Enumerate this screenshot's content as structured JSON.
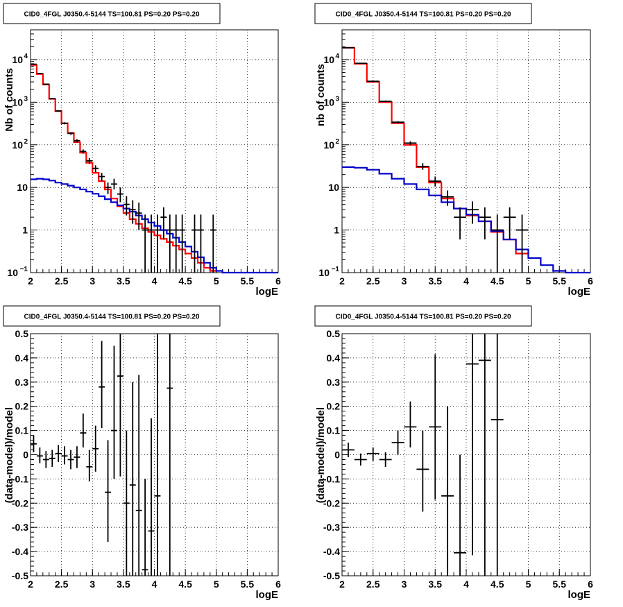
{
  "colors": {
    "data": "#000000",
    "total_model": "#ff0000",
    "bkg_model": "#0000cc",
    "grid": "#000000"
  },
  "panels": [
    {
      "title": "CID0_4FGL J0350.4-5144 TS=100.81 PS=0.20 PS=0.20",
      "chart_data": {
        "type": "histogram",
        "yscale": "log",
        "grid": true,
        "xlabel": "logE",
        "ylabel": "Nb of counts",
        "xlim": [
          2,
          6
        ],
        "ylim": [
          0.1,
          50000
        ],
        "xticks": [
          "2",
          "2.5",
          "3",
          "3.5",
          "4",
          "4.5",
          "5",
          "5.5",
          "6"
        ],
        "yticks": [
          {
            "v": 0.1,
            "b": "10",
            "e": "−1"
          },
          {
            "v": 1,
            "b": "1",
            "e": ""
          },
          {
            "v": 10,
            "b": "10",
            "e": ""
          },
          {
            "v": 100,
            "b": "10",
            "e": "2"
          },
          {
            "v": 1000,
            "b": "10",
            "e": "3"
          },
          {
            "v": 10000,
            "b": "10",
            "e": "4"
          }
        ],
        "bin_edges_start": 2,
        "bin_width": 0.1,
        "series": [
          {
            "key": "total_model",
            "values": [
              7500,
              4600,
              2600,
              1200,
              620,
              320,
              190,
              115,
              65,
              38,
              22,
              14,
              9,
              5.5,
              3.6,
              2.5,
              1.8,
              1.4,
              1.1,
              0.9,
              0.75,
              0.62,
              0.52,
              0.43,
              0.35,
              0.28,
              0.22,
              0.17,
              0.13,
              0.11
            ]
          },
          {
            "key": "bkg_model",
            "values": [
              15.5,
              16,
              15.5,
              14.5,
              13,
              12,
              11,
              10,
              9,
              8,
              7.1,
              6.2,
              5.3,
              4.5,
              3.8,
              3.2,
              2.7,
              2.2,
              1.8,
              1.5,
              1.25,
              1,
              0.82,
              0.66,
              0.52,
              0.41,
              0.31,
              0.23,
              0.17,
              0.13,
              0.11,
              0.1,
              0.1,
              0.1,
              0.1,
              0.1,
              0.1,
              0.1,
              0.1,
              0.1
            ]
          },
          {
            "key": "data",
            "points": [
              {
                "x": 2.05,
                "y": 7800,
                "lo": 7700,
                "hi": 7900
              },
              {
                "x": 2.15,
                "y": 4700,
                "lo": 4630,
                "hi": 4770
              },
              {
                "x": 2.25,
                "y": 2650,
                "lo": 2600,
                "hi": 2700
              },
              {
                "x": 2.35,
                "y": 1210,
                "lo": 1175,
                "hi": 1245
              },
              {
                "x": 2.45,
                "y": 625,
                "lo": 600,
                "hi": 650
              },
              {
                "x": 2.55,
                "y": 320,
                "lo": 302,
                "hi": 338
              },
              {
                "x": 2.65,
                "y": 185,
                "lo": 172,
                "hi": 199
              },
              {
                "x": 2.75,
                "y": 125,
                "lo": 114,
                "hi": 136
              },
              {
                "x": 2.85,
                "y": 70,
                "lo": 62,
                "hi": 78
              },
              {
                "x": 2.95,
                "y": 42,
                "lo": 36,
                "hi": 49
              },
              {
                "x": 3.05,
                "y": 28,
                "lo": 23,
                "hi": 33
              },
              {
                "x": 3.15,
                "y": 18,
                "lo": 14,
                "hi": 22
              },
              {
                "x": 3.25,
                "y": 10,
                "lo": 7,
                "hi": 13
              },
              {
                "x": 3.35,
                "y": 12,
                "lo": 9,
                "hi": 16
              },
              {
                "x": 3.45,
                "y": 7,
                "lo": 4.5,
                "hi": 10
              },
              {
                "x": 3.55,
                "y": 4,
                "lo": 2.2,
                "hi": 6.2
              },
              {
                "x": 3.65,
                "y": 3,
                "lo": 1.4,
                "hi": 5
              },
              {
                "x": 3.75,
                "y": 2.5,
                "lo": 1,
                "hi": 4.4
              },
              {
                "x": 3.85,
                "y": 1,
                "lo": 0.1,
                "hi": 2.3
              },
              {
                "x": 3.95,
                "y": 1,
                "lo": 0.1,
                "hi": 2.3
              },
              {
                "x": 4.05,
                "y": 1,
                "lo": 0.1,
                "hi": 2.3
              },
              {
                "x": 4.15,
                "y": 2,
                "lo": 0.6,
                "hi": 3.4
              },
              {
                "x": 4.25,
                "y": 1,
                "lo": 0.1,
                "hi": 2.3
              },
              {
                "x": 4.35,
                "y": 1,
                "lo": 0.1,
                "hi": 2.3
              },
              {
                "x": 4.45,
                "y": 1,
                "lo": 0.1,
                "hi": 2.3
              },
              {
                "x": 4.65,
                "y": 1,
                "lo": 0.1,
                "hi": 2.3
              },
              {
                "x": 4.75,
                "y": 1,
                "lo": 0.1,
                "hi": 2.3
              },
              {
                "x": 4.95,
                "y": 1,
                "lo": 0.1,
                "hi": 2.3
              }
            ]
          }
        ]
      }
    },
    {
      "title": "CID0_4FGL J0350.4-5144 TS=100.81 PS=0.20 PS=0.20",
      "chart_data": {
        "type": "histogram",
        "yscale": "log",
        "grid": true,
        "xlabel": "logE",
        "ylabel": "nb of counts",
        "xlim": [
          2,
          6
        ],
        "ylim": [
          0.1,
          50000
        ],
        "xticks": [
          "2",
          "2.5",
          "3",
          "3.5",
          "4",
          "4.5",
          "5",
          "5.5",
          "6"
        ],
        "yticks": [
          {
            "v": 0.1,
            "b": "10",
            "e": "−1"
          },
          {
            "v": 1,
            "b": "1",
            "e": ""
          },
          {
            "v": 10,
            "b": "10",
            "e": ""
          },
          {
            "v": 100,
            "b": "10",
            "e": "2"
          },
          {
            "v": 1000,
            "b": "10",
            "e": "3"
          },
          {
            "v": 10000,
            "b": "10",
            "e": "4"
          }
        ],
        "bin_edges_start": 2,
        "bin_width": 0.2,
        "series": [
          {
            "key": "total_model",
            "values": [
              19000,
              8000,
              3000,
              1000,
              320,
              100,
              30,
              13,
              5.5,
              3.2,
              2.2,
              1.6,
              0.9,
              0.6,
              0.28
            ]
          },
          {
            "key": "bkg_model",
            "values": [
              30,
              29,
              26,
              21,
              16,
              12,
              9,
              6.5,
              4.5,
              3.2,
              2.3,
              1.6,
              0.95,
              0.6,
              0.35,
              0.22,
              0.15,
              0.11,
              0.1,
              0.1
            ]
          },
          {
            "key": "data",
            "points": [
              {
                "x": 2.1,
                "y": 19000,
                "lo": 18700,
                "hi": 19300
              },
              {
                "x": 2.3,
                "y": 8200,
                "lo": 8000,
                "hi": 8400
              },
              {
                "x": 2.5,
                "y": 3100,
                "lo": 3000,
                "hi": 3200
              },
              {
                "x": 2.7,
                "y": 1050,
                "lo": 1000,
                "hi": 1100
              },
              {
                "x": 2.9,
                "y": 340,
                "lo": 320,
                "hi": 360
              },
              {
                "x": 3.1,
                "y": 110,
                "lo": 100,
                "hi": 121
              },
              {
                "x": 3.3,
                "y": 31,
                "lo": 26,
                "hi": 37
              },
              {
                "x": 3.5,
                "y": 14,
                "lo": 10.5,
                "hi": 18
              },
              {
                "x": 3.7,
                "y": 6,
                "lo": 3.7,
                "hi": 8.5
              },
              {
                "x": 3.9,
                "y": 2,
                "lo": 0.6,
                "hi": 3.4
              },
              {
                "x": 4.1,
                "y": 3,
                "lo": 1.4,
                "hi": 4.7
              },
              {
                "x": 4.3,
                "y": 2,
                "lo": 0.6,
                "hi": 3.4
              },
              {
                "x": 4.5,
                "y": 1,
                "lo": 0.1,
                "hi": 2.3
              },
              {
                "x": 4.7,
                "y": 2,
                "lo": 0.6,
                "hi": 3.4
              },
              {
                "x": 4.9,
                "y": 1,
                "lo": 0.1,
                "hi": 2.3
              }
            ]
          }
        ]
      }
    },
    {
      "title": "CID0_4FGL J0350.4-5144 TS=100.81 PS=0.20 PS=0.20",
      "chart_data": {
        "type": "errorbar",
        "yscale": "linear",
        "grid": true,
        "xlabel": "logE",
        "ylabel": "(data-model)/model",
        "xlim": [
          2,
          6
        ],
        "ylim": [
          -0.5,
          0.5
        ],
        "xticks": [
          "2",
          "2.5",
          "3",
          "3.5",
          "4",
          "4.5",
          "5",
          "5.5",
          "6"
        ],
        "yticks": [
          "0.5",
          "0.4",
          "0.3",
          "0.2",
          "0.1",
          "0",
          "-0.1",
          "-0.2",
          "-0.3",
          "-0.4",
          "-0.5"
        ],
        "half_width": 0.05,
        "points": [
          {
            "x": 2.05,
            "y": 0.045,
            "lo": 0.01,
            "hi": 0.08
          },
          {
            "x": 2.15,
            "y": -0.005,
            "lo": -0.035,
            "hi": 0.03
          },
          {
            "x": 2.25,
            "y": -0.02,
            "lo": -0.055,
            "hi": 0.015
          },
          {
            "x": 2.35,
            "y": -0.015,
            "lo": -0.05,
            "hi": 0.02
          },
          {
            "x": 2.45,
            "y": 0.005,
            "lo": -0.03,
            "hi": 0.04
          },
          {
            "x": 2.55,
            "y": -0.005,
            "lo": -0.04,
            "hi": 0.035
          },
          {
            "x": 2.65,
            "y": -0.02,
            "lo": -0.06,
            "hi": 0.02
          },
          {
            "x": 2.75,
            "y": -0.01,
            "lo": -0.055,
            "hi": 0.035
          },
          {
            "x": 2.85,
            "y": 0.09,
            "lo": 0.03,
            "hi": 0.17
          },
          {
            "x": 2.95,
            "y": -0.05,
            "lo": -0.11,
            "hi": 0.02
          },
          {
            "x": 3.05,
            "y": 0.025,
            "lo": -0.07,
            "hi": 0.12
          },
          {
            "x": 3.15,
            "y": 0.28,
            "lo": 0.11,
            "hi": 0.47
          },
          {
            "x": 3.25,
            "y": -0.155,
            "lo": -0.36,
            "hi": 0.06
          },
          {
            "x": 3.35,
            "y": 0.1,
            "lo": -0.1,
            "hi": 0.45
          },
          {
            "x": 3.45,
            "y": 0.325,
            "lo": -0.09,
            "hi": 0.5
          },
          {
            "x": 3.55,
            "y": -0.2,
            "lo": -0.5,
            "hi": 0.1
          },
          {
            "x": 3.65,
            "y": -0.125,
            "lo": -0.5,
            "hi": 0.3
          },
          {
            "x": 3.75,
            "y": -0.23,
            "lo": -0.5,
            "hi": 0.33
          },
          {
            "x": 3.85,
            "y": -0.475,
            "lo": -0.5,
            "hi": -0.1
          },
          {
            "x": 3.95,
            "y": -0.315,
            "lo": -0.5,
            "hi": 0.15
          },
          {
            "x": 4.05,
            "y": -0.17,
            "lo": -0.5,
            "hi": 0.5
          },
          {
            "x": 4.25,
            "y": 0.275,
            "lo": -0.5,
            "hi": 0.5
          }
        ]
      }
    },
    {
      "title": "CID0_4FGL J0350.4-5144 TS=100.81 PS=0.20 PS=0.20",
      "chart_data": {
        "type": "errorbar",
        "yscale": "linear",
        "grid": true,
        "xlabel": "logE",
        "ylabel": "(data-model)/model",
        "xlim": [
          2,
          6
        ],
        "ylim": [
          -0.5,
          0.5
        ],
        "xticks": [
          "2",
          "2.5",
          "3",
          "3.5",
          "4",
          "4.5",
          "5",
          "5.5",
          "6"
        ],
        "yticks": [
          "0.5",
          "0.4",
          "0.3",
          "0.2",
          "0.1",
          "0",
          "-0.1",
          "-0.2",
          "-0.3",
          "-0.4",
          "-0.5"
        ],
        "half_width": 0.1,
        "points": [
          {
            "x": 2.1,
            "y": 0.02,
            "lo": -0.01,
            "hi": 0.05
          },
          {
            "x": 2.3,
            "y": -0.02,
            "lo": -0.045,
            "hi": 0.005
          },
          {
            "x": 2.5,
            "y": 0.005,
            "lo": -0.025,
            "hi": 0.03
          },
          {
            "x": 2.7,
            "y": -0.02,
            "lo": -0.05,
            "hi": 0.01
          },
          {
            "x": 2.9,
            "y": 0.05,
            "lo": 0.0,
            "hi": 0.1
          },
          {
            "x": 3.1,
            "y": 0.115,
            "lo": 0.03,
            "hi": 0.22
          },
          {
            "x": 3.3,
            "y": -0.06,
            "lo": -0.235,
            "hi": 0.1
          },
          {
            "x": 3.5,
            "y": 0.115,
            "lo": -0.185,
            "hi": 0.415
          },
          {
            "x": 3.7,
            "y": -0.17,
            "lo": -0.5,
            "hi": 0.2
          },
          {
            "x": 3.9,
            "y": -0.405,
            "lo": -0.5,
            "hi": 0.0
          },
          {
            "x": 4.1,
            "y": 0.375,
            "lo": -0.415,
            "hi": 0.5
          },
          {
            "x": 4.3,
            "y": 0.39,
            "lo": -0.5,
            "hi": 0.5
          },
          {
            "x": 4.5,
            "y": 0.145,
            "lo": -0.5,
            "hi": 0.5
          }
        ]
      }
    }
  ]
}
